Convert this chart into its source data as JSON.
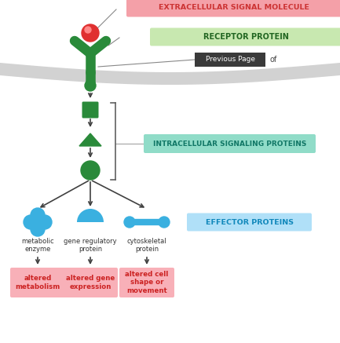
{
  "bg_color": "#ffffff",
  "fig_width": 4.33,
  "fig_height": 4.37,
  "label_extracellular": "EXTRACELLULAR SIGNAL MOLECULE",
  "label_receptor": "RECEPTOR PROTEIN",
  "label_intracellular": "INTRACELLULAR SIGNALING PROTEINS",
  "label_effector": "EFFECTOR PROTEINS",
  "label_prev_page": "Previous Page",
  "label_of": "of",
  "label_metabolic": "metabolic\nenzyme",
  "label_gene": "gene regulatory\nprotein",
  "label_cytoskeletal": "cytoskeletal\nprotein",
  "label_altered_metabolism": "altered\nmetabolism",
  "label_altered_gene": "altered gene\nexpression",
  "label_altered_cell": "altered cell\nshape or\nmovement",
  "color_green_dark": "#2a8a3a",
  "color_green_light": "#6abf5e",
  "color_red_ball": "#e03030",
  "color_blue_effector": "#3ab0e0",
  "color_pink_label_bg": "#f4a0a8",
  "color_green_label_bg": "#c8e8b0",
  "color_teal_label_bg": "#90dcc8",
  "color_light_blue_label_bg": "#b0e0f8",
  "color_pink_result_bg": "#f8b0b8",
  "color_membrane": "#d2d2d2",
  "color_arrow": "#404040",
  "color_bracket": "#606060",
  "color_prev_page_bg": "#3a3a3a",
  "color_prev_page_text": "#ffffff"
}
